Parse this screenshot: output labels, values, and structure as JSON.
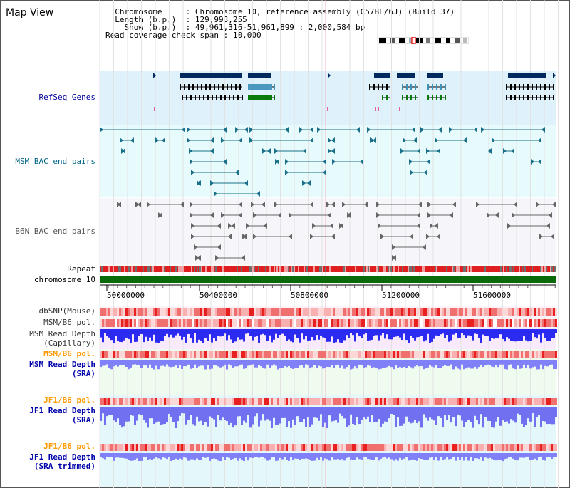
{
  "page": {
    "title": "Map View"
  },
  "info": {
    "chromosome_label": "Chromosome",
    "chromosome_value": "Chromosome 10, reference assembly (C57BL/6J) (Build 37)",
    "length_label": "Length (b.p.)",
    "length_value": "129,993,255",
    "show_label": "Show (b.p.)",
    "show_value": "49,961,316-51,961,899 : 2,000,584 bp",
    "coverage_label": "Read coverage check span",
    "coverage_value": "10,000"
  },
  "tracks": {
    "refseq": {
      "label": "RefSeq Genes",
      "color": "#000099"
    },
    "msm_bac": {
      "label": "MSM BAC end pairs",
      "color": "#006688"
    },
    "b6n_bac": {
      "label": "B6N BAC end pairs",
      "color": "#555555"
    },
    "repeat": {
      "label": "Repeat"
    },
    "chromosome": {
      "label": "chromosome 10"
    },
    "dbsnp": {
      "label": "dbSNP(Mouse)"
    },
    "msm_b6_pol_1": {
      "label": "MSM/B6 pol."
    },
    "msm_read_depth_cap": {
      "label1": "MSM Read Depth",
      "label2": "(Capillary)"
    },
    "msm_b6_pol_2": {
      "label": "MSM/B6 pol.",
      "color": "#ff9900"
    },
    "msm_read_depth_sra": {
      "label1": "MSM Read Depth",
      "label2": "(SRA)",
      "color": "#0000aa"
    },
    "jf1_b6_pol_1": {
      "label": "JF1/B6 pol.",
      "color": "#ff9900"
    },
    "jf1_read_depth_sra": {
      "label1": "JF1 Read Depth",
      "label2": "(SRA)",
      "color": "#0000aa"
    },
    "jf1_b6_pol_2": {
      "label": "JF1/B6 pol.",
      "color": "#ff9900"
    },
    "jf1_read_depth_trim": {
      "label1": "JF1 Read Depth",
      "label2": "(SRA trimmed)",
      "color": "#0000aa"
    }
  },
  "ruler": {
    "ticks": [
      "50000000",
      "50400000",
      "50800000",
      "51200000",
      "51600000"
    ]
  }
}
